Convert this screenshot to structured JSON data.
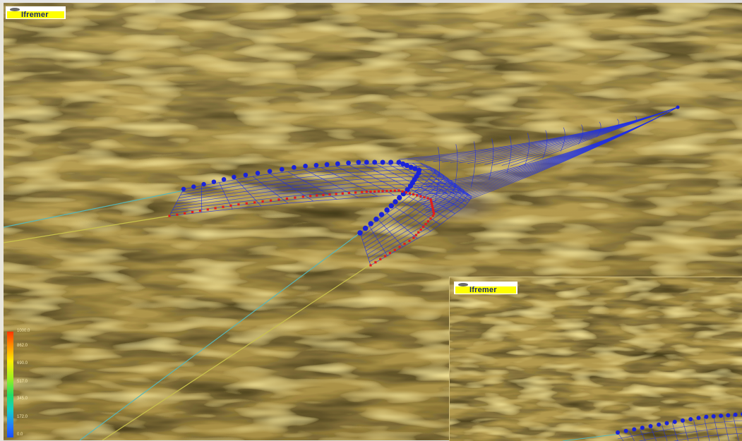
{
  "app": {
    "logo_text": "Ifremer",
    "inset_logo_text": "Ifremer"
  },
  "legend": {
    "labels": [
      "1000.0",
      "862.0",
      "690.0",
      "517.0",
      "345.0",
      "172.0",
      "0.0"
    ]
  },
  "colors": {
    "seabed": "#b59c4f",
    "net_mesh": "#1f2fe6",
    "headline_floats": "#1a22d8",
    "footrope_weights": "#e01d1d",
    "warp_cable_1": "#58b7b7",
    "warp_cable_2": "#c9c34b",
    "logo_bar": "#ffff00"
  },
  "icons": {
    "logo": "ifremer-logo-icon"
  }
}
